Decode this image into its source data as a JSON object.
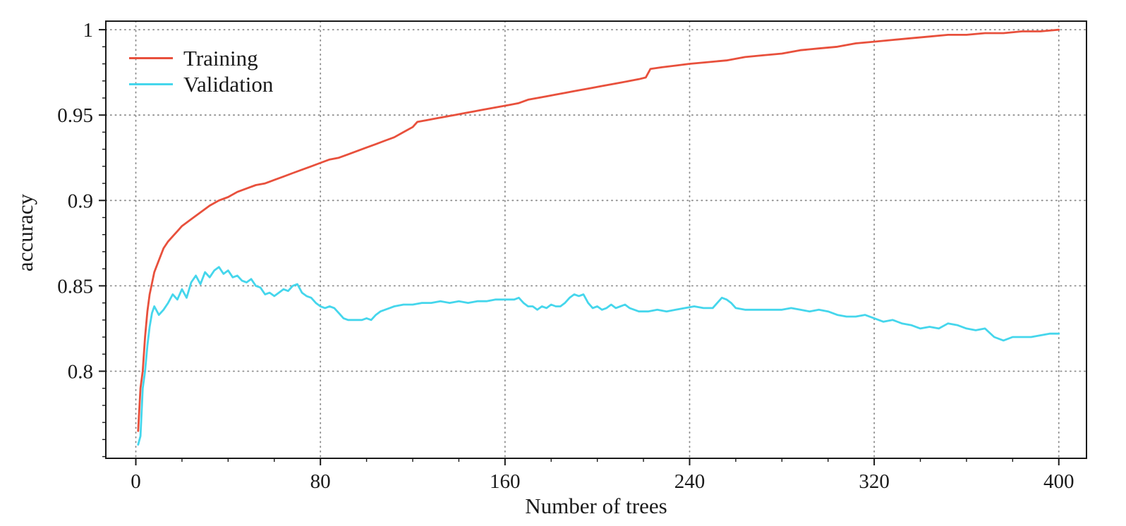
{
  "chart_data": {
    "type": "line",
    "title": "",
    "xlabel": "Number of trees",
    "ylabel": "accuracy",
    "xlim": [
      -13,
      412
    ],
    "ylim": [
      0.749,
      1.005
    ],
    "x_ticks": [
      0,
      80,
      160,
      240,
      320,
      400
    ],
    "x_tick_labels": [
      "0",
      "80",
      "160",
      "240",
      "320",
      "400"
    ],
    "y_ticks": [
      0.8,
      0.85,
      0.9,
      0.95,
      1
    ],
    "y_tick_labels": [
      "0.8",
      "0.85",
      "0.9",
      "0.95",
      "1"
    ],
    "x_minor_step": 20,
    "y_minor_step": 0.01,
    "grid": true,
    "legend_position": "top-left",
    "colors": {
      "grid": "#8c8c8c",
      "axis": "#1a1a1a",
      "background": "#ffffff"
    },
    "series": [
      {
        "name": "Training",
        "color": "#e8503c",
        "points": [
          [
            1,
            0.765
          ],
          [
            2,
            0.79
          ],
          [
            3,
            0.8
          ],
          [
            4,
            0.82
          ],
          [
            5,
            0.835
          ],
          [
            6,
            0.845
          ],
          [
            8,
            0.858
          ],
          [
            10,
            0.865
          ],
          [
            12,
            0.872
          ],
          [
            14,
            0.876
          ],
          [
            16,
            0.879
          ],
          [
            18,
            0.882
          ],
          [
            20,
            0.885
          ],
          [
            24,
            0.889
          ],
          [
            28,
            0.893
          ],
          [
            32,
            0.897
          ],
          [
            36,
            0.9
          ],
          [
            40,
            0.902
          ],
          [
            44,
            0.905
          ],
          [
            48,
            0.907
          ],
          [
            52,
            0.909
          ],
          [
            56,
            0.91
          ],
          [
            60,
            0.912
          ],
          [
            64,
            0.914
          ],
          [
            68,
            0.916
          ],
          [
            72,
            0.918
          ],
          [
            76,
            0.92
          ],
          [
            80,
            0.922
          ],
          [
            84,
            0.924
          ],
          [
            88,
            0.925
          ],
          [
            92,
            0.927
          ],
          [
            96,
            0.929
          ],
          [
            100,
            0.931
          ],
          [
            104,
            0.933
          ],
          [
            108,
            0.935
          ],
          [
            112,
            0.937
          ],
          [
            116,
            0.94
          ],
          [
            120,
            0.943
          ],
          [
            122,
            0.946
          ],
          [
            126,
            0.947
          ],
          [
            130,
            0.948
          ],
          [
            134,
            0.949
          ],
          [
            138,
            0.95
          ],
          [
            142,
            0.951
          ],
          [
            146,
            0.952
          ],
          [
            150,
            0.953
          ],
          [
            154,
            0.954
          ],
          [
            158,
            0.955
          ],
          [
            162,
            0.956
          ],
          [
            166,
            0.957
          ],
          [
            170,
            0.959
          ],
          [
            174,
            0.96
          ],
          [
            178,
            0.961
          ],
          [
            182,
            0.962
          ],
          [
            186,
            0.963
          ],
          [
            190,
            0.964
          ],
          [
            194,
            0.965
          ],
          [
            198,
            0.966
          ],
          [
            202,
            0.967
          ],
          [
            206,
            0.968
          ],
          [
            210,
            0.969
          ],
          [
            214,
            0.97
          ],
          [
            218,
            0.971
          ],
          [
            221,
            0.972
          ],
          [
            223,
            0.977
          ],
          [
            228,
            0.978
          ],
          [
            234,
            0.979
          ],
          [
            240,
            0.98
          ],
          [
            248,
            0.981
          ],
          [
            256,
            0.982
          ],
          [
            264,
            0.984
          ],
          [
            272,
            0.985
          ],
          [
            280,
            0.986
          ],
          [
            288,
            0.988
          ],
          [
            296,
            0.989
          ],
          [
            304,
            0.99
          ],
          [
            312,
            0.992
          ],
          [
            320,
            0.993
          ],
          [
            328,
            0.994
          ],
          [
            336,
            0.995
          ],
          [
            344,
            0.996
          ],
          [
            352,
            0.997
          ],
          [
            360,
            0.997
          ],
          [
            368,
            0.998
          ],
          [
            376,
            0.998
          ],
          [
            384,
            0.999
          ],
          [
            392,
            0.999
          ],
          [
            400,
            1.0
          ]
        ]
      },
      {
        "name": "Validation",
        "color": "#45d6ec",
        "points": [
          [
            1,
            0.757
          ],
          [
            2,
            0.762
          ],
          [
            3,
            0.79
          ],
          [
            4,
            0.8
          ],
          [
            5,
            0.815
          ],
          [
            6,
            0.826
          ],
          [
            7,
            0.834
          ],
          [
            8,
            0.838
          ],
          [
            10,
            0.833
          ],
          [
            12,
            0.836
          ],
          [
            14,
            0.84
          ],
          [
            16,
            0.845
          ],
          [
            18,
            0.842
          ],
          [
            20,
            0.848
          ],
          [
            22,
            0.843
          ],
          [
            24,
            0.852
          ],
          [
            26,
            0.856
          ],
          [
            28,
            0.851
          ],
          [
            30,
            0.858
          ],
          [
            32,
            0.855
          ],
          [
            34,
            0.859
          ],
          [
            36,
            0.861
          ],
          [
            38,
            0.857
          ],
          [
            40,
            0.859
          ],
          [
            42,
            0.855
          ],
          [
            44,
            0.856
          ],
          [
            46,
            0.853
          ],
          [
            48,
            0.852
          ],
          [
            50,
            0.854
          ],
          [
            52,
            0.85
          ],
          [
            54,
            0.849
          ],
          [
            56,
            0.845
          ],
          [
            58,
            0.846
          ],
          [
            60,
            0.844
          ],
          [
            62,
            0.846
          ],
          [
            64,
            0.848
          ],
          [
            66,
            0.847
          ],
          [
            68,
            0.85
          ],
          [
            70,
            0.851
          ],
          [
            72,
            0.846
          ],
          [
            74,
            0.844
          ],
          [
            76,
            0.843
          ],
          [
            78,
            0.84
          ],
          [
            80,
            0.838
          ],
          [
            82,
            0.837
          ],
          [
            84,
            0.838
          ],
          [
            86,
            0.837
          ],
          [
            88,
            0.834
          ],
          [
            90,
            0.831
          ],
          [
            92,
            0.83
          ],
          [
            94,
            0.83
          ],
          [
            96,
            0.83
          ],
          [
            98,
            0.83
          ],
          [
            100,
            0.831
          ],
          [
            102,
            0.83
          ],
          [
            104,
            0.833
          ],
          [
            106,
            0.835
          ],
          [
            108,
            0.836
          ],
          [
            110,
            0.837
          ],
          [
            112,
            0.838
          ],
          [
            116,
            0.839
          ],
          [
            120,
            0.839
          ],
          [
            124,
            0.84
          ],
          [
            128,
            0.84
          ],
          [
            132,
            0.841
          ],
          [
            136,
            0.84
          ],
          [
            140,
            0.841
          ],
          [
            144,
            0.84
          ],
          [
            148,
            0.841
          ],
          [
            152,
            0.841
          ],
          [
            156,
            0.842
          ],
          [
            160,
            0.842
          ],
          [
            164,
            0.842
          ],
          [
            166,
            0.843
          ],
          [
            168,
            0.84
          ],
          [
            170,
            0.838
          ],
          [
            172,
            0.838
          ],
          [
            174,
            0.836
          ],
          [
            176,
            0.838
          ],
          [
            178,
            0.837
          ],
          [
            180,
            0.839
          ],
          [
            182,
            0.838
          ],
          [
            184,
            0.838
          ],
          [
            186,
            0.84
          ],
          [
            188,
            0.843
          ],
          [
            190,
            0.845
          ],
          [
            192,
            0.844
          ],
          [
            194,
            0.845
          ],
          [
            196,
            0.84
          ],
          [
            198,
            0.837
          ],
          [
            200,
            0.838
          ],
          [
            202,
            0.836
          ],
          [
            204,
            0.837
          ],
          [
            206,
            0.839
          ],
          [
            208,
            0.837
          ],
          [
            210,
            0.838
          ],
          [
            212,
            0.839
          ],
          [
            214,
            0.837
          ],
          [
            216,
            0.836
          ],
          [
            218,
            0.835
          ],
          [
            222,
            0.835
          ],
          [
            226,
            0.836
          ],
          [
            230,
            0.835
          ],
          [
            234,
            0.836
          ],
          [
            238,
            0.837
          ],
          [
            242,
            0.838
          ],
          [
            246,
            0.837
          ],
          [
            250,
            0.837
          ],
          [
            252,
            0.84
          ],
          [
            254,
            0.843
          ],
          [
            256,
            0.842
          ],
          [
            258,
            0.84
          ],
          [
            260,
            0.837
          ],
          [
            264,
            0.836
          ],
          [
            268,
            0.836
          ],
          [
            272,
            0.836
          ],
          [
            276,
            0.836
          ],
          [
            280,
            0.836
          ],
          [
            284,
            0.837
          ],
          [
            288,
            0.836
          ],
          [
            292,
            0.835
          ],
          [
            296,
            0.836
          ],
          [
            300,
            0.835
          ],
          [
            304,
            0.833
          ],
          [
            308,
            0.832
          ],
          [
            312,
            0.832
          ],
          [
            316,
            0.833
          ],
          [
            320,
            0.831
          ],
          [
            324,
            0.829
          ],
          [
            328,
            0.83
          ],
          [
            332,
            0.828
          ],
          [
            336,
            0.827
          ],
          [
            340,
            0.825
          ],
          [
            344,
            0.826
          ],
          [
            348,
            0.825
          ],
          [
            352,
            0.828
          ],
          [
            356,
            0.827
          ],
          [
            360,
            0.825
          ],
          [
            364,
            0.824
          ],
          [
            368,
            0.825
          ],
          [
            372,
            0.82
          ],
          [
            376,
            0.818
          ],
          [
            380,
            0.82
          ],
          [
            384,
            0.82
          ],
          [
            388,
            0.82
          ],
          [
            392,
            0.821
          ],
          [
            396,
            0.822
          ],
          [
            400,
            0.822
          ]
        ]
      }
    ]
  }
}
